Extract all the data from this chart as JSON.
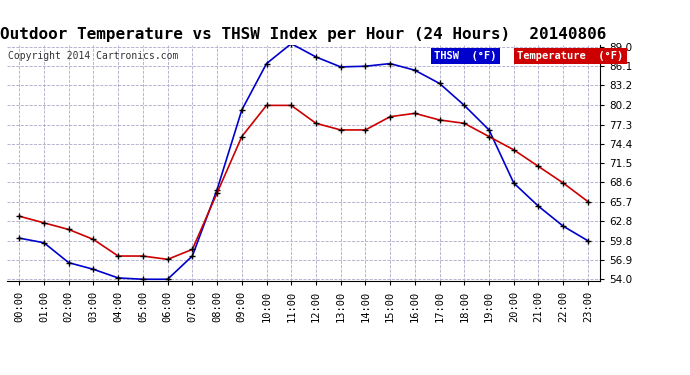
{
  "title": "Outdoor Temperature vs THSW Index per Hour (24 Hours)  20140806",
  "copyright": "Copyright 2014 Cartronics.com",
  "background_color": "#ffffff",
  "plot_bg_color": "#ffffff",
  "grid_color": "#aaaacc",
  "hours": [
    "00:00",
    "01:00",
    "02:00",
    "03:00",
    "04:00",
    "05:00",
    "06:00",
    "07:00",
    "08:00",
    "09:00",
    "10:00",
    "11:00",
    "12:00",
    "13:00",
    "14:00",
    "15:00",
    "16:00",
    "17:00",
    "18:00",
    "19:00",
    "20:00",
    "21:00",
    "22:00",
    "23:00"
  ],
  "thsw": [
    60.2,
    59.5,
    56.5,
    55.5,
    54.2,
    54.0,
    54.0,
    57.5,
    67.5,
    79.5,
    86.5,
    89.5,
    87.5,
    86.0,
    86.1,
    86.5,
    85.5,
    83.5,
    80.2,
    76.5,
    68.5,
    65.0,
    62.0,
    59.8
  ],
  "temp": [
    63.5,
    62.5,
    61.5,
    60.0,
    57.5,
    57.5,
    57.0,
    58.5,
    67.0,
    75.5,
    80.2,
    80.2,
    77.5,
    76.5,
    76.5,
    78.5,
    79.0,
    78.0,
    77.5,
    75.5,
    73.5,
    71.0,
    68.5,
    65.7
  ],
  "thsw_color": "#0000cc",
  "temp_color": "#cc0000",
  "ylim_min": 54.0,
  "ylim_max": 89.0,
  "yticks": [
    54.0,
    56.9,
    59.8,
    62.8,
    65.7,
    68.6,
    71.5,
    74.4,
    77.3,
    80.2,
    83.2,
    86.1,
    89.0
  ],
  "marker": "+",
  "marker_size": 5,
  "line_width": 1.2,
  "title_fontsize": 11.5,
  "tick_fontsize": 7.5,
  "copyright_fontsize": 7,
  "legend_thsw_label": "THSW  (°F)",
  "legend_temp_label": "Temperature  (°F)",
  "legend_thsw_bg": "#0000cc",
  "legend_temp_bg": "#cc0000"
}
